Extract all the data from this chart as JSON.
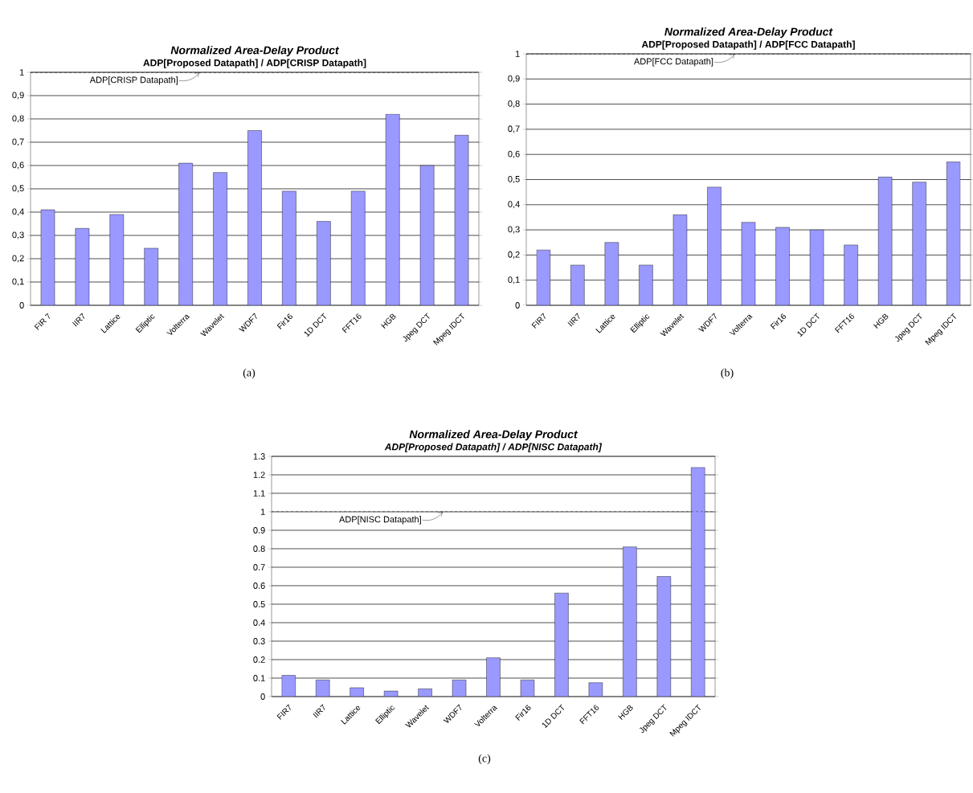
{
  "chart_data": [
    {
      "type": "bar",
      "title": "Normalized Area-Delay Product",
      "subtitle": "ADP[Proposed Datapath] / ADP[CRISP Datapath]",
      "annotations": [
        "(a)"
      ],
      "categories": [
        "FIR 7",
        "IIR7",
        "Lattice",
        "Elliptic",
        "Volterra",
        "Wavelet",
        "WDF7",
        "Fir16",
        "1D DCT",
        "FFT16",
        "HGB",
        "Jpeg DCT",
        "Mpeg IDCT"
      ],
      "values": [
        0.41,
        0.33,
        0.39,
        0.245,
        0.61,
        0.57,
        0.75,
        0.49,
        0.36,
        0.49,
        0.82,
        0.6,
        0.73
      ],
      "color": "#9999ff",
      "ylim": [
        0,
        1
      ],
      "yticks": [
        0,
        {
          "value": 0.1,
          "label": "0,1"
        },
        {
          "value": 0.2,
          "label": "0,2"
        },
        {
          "value": 0.3,
          "label": "0,3"
        },
        {
          "value": 0.4,
          "label": "0,4"
        },
        {
          "value": 0.5,
          "label": "0,5"
        },
        {
          "value": 0.6,
          "label": "0,6"
        },
        {
          "value": 0.7,
          "label": "0,7"
        },
        {
          "value": 0.8,
          "label": "0,8"
        },
        {
          "value": 0.9,
          "label": "0,9"
        },
        1
      ],
      "grid": "y",
      "ref_lines": [
        {
          "axis": "y",
          "value": 1,
          "label": "ADP[CRISP Datapath]",
          "line_style": "dashed"
        }
      ]
    },
    {
      "type": "bar",
      "title": "Normalized Area-Delay Product",
      "subtitle": "ADP[Proposed Datapath] / ADP[FCC Datapath]",
      "annotations": [
        "(b)"
      ],
      "categories": [
        "FIR7",
        "IIR7",
        "Lattice",
        "Elliptic",
        "Wavelet",
        "WDF7",
        "Volterra",
        "Fir16",
        "1D DCT",
        "FFT16",
        "HGB",
        "Jpeg DCT",
        "Mpeg IDCT"
      ],
      "values": [
        0.22,
        0.16,
        0.25,
        0.16,
        0.36,
        0.47,
        0.33,
        0.31,
        0.3,
        0.24,
        0.51,
        0.49,
        0.57
      ],
      "color": "#9999ff",
      "ylim": [
        0,
        1
      ],
      "yticks": [
        0,
        {
          "value": 0.1,
          "label": "0,1"
        },
        {
          "value": 0.2,
          "label": "0,2"
        },
        {
          "value": 0.3,
          "label": "0,3"
        },
        {
          "value": 0.4,
          "label": "0,4"
        },
        {
          "value": 0.5,
          "label": "0,5"
        },
        {
          "value": 0.6,
          "label": "0,6"
        },
        {
          "value": 0.7,
          "label": "0,7"
        },
        {
          "value": 0.8,
          "label": "0,8"
        },
        {
          "value": 0.9,
          "label": "0,9"
        },
        1
      ],
      "grid": "y",
      "ref_lines": [
        {
          "axis": "y",
          "value": 1,
          "label": "ADP[FCC Datapath]",
          "line_style": "dashed"
        }
      ]
    },
    {
      "type": "bar",
      "title": "Normalized Area-Delay Product",
      "subtitle": "*ADP[Proposed Datapath] / ADP[NISC Datapath]*",
      "annotations": [
        "(c)"
      ],
      "categories": [
        "FIR7",
        "IIR7",
        "Lattice",
        "Elliptic",
        "Wavelet",
        "WDF7",
        "Volterra",
        "Fir16",
        "1D DCT",
        "FFT16",
        "HGB",
        "Jpeg DCT",
        "Mpeg IDCT"
      ],
      "values": [
        0.115,
        0.09,
        0.048,
        0.03,
        0.042,
        0.09,
        0.21,
        0.09,
        0.56,
        0.075,
        0.81,
        0.65,
        1.24
      ],
      "color": "#9999ff",
      "ylim": [
        0,
        1.3
      ],
      "yticks": [
        0,
        0.1,
        0.2,
        0.3,
        0.4,
        0.5,
        0.6,
        0.7,
        0.8,
        0.9,
        1,
        1.1,
        1.2,
        1.3
      ],
      "grid": "y",
      "ref_lines": [
        {
          "axis": "y",
          "value": 1,
          "label": "ADP[NISC Datapath]",
          "line_style": "dashed"
        }
      ]
    }
  ]
}
